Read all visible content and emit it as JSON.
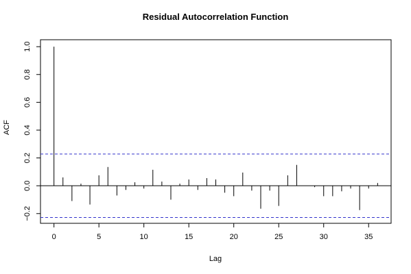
{
  "chart_data": {
    "type": "bar",
    "title": "Residual Autocorrelation Function",
    "xlabel": "Lag",
    "ylabel": "ACF",
    "xlim": [
      -1.5,
      37.5
    ],
    "ylim": [
      -0.27,
      1.05
    ],
    "x_ticks": [
      0,
      5,
      10,
      15,
      20,
      25,
      30,
      35
    ],
    "y_ticks": [
      -0.2,
      0.0,
      0.2,
      0.4,
      0.6,
      0.8,
      1.0
    ],
    "x_tick_labels": [
      "0",
      "5",
      "10",
      "15",
      "20",
      "25",
      "30",
      "35"
    ],
    "y_tick_labels": [
      "−0.2",
      "0.0",
      "0.2",
      "0.4",
      "0.6",
      "0.8",
      "1.0"
    ],
    "lags": [
      0,
      1,
      2,
      3,
      4,
      5,
      6,
      7,
      8,
      9,
      10,
      11,
      12,
      13,
      14,
      15,
      16,
      17,
      18,
      19,
      20,
      21,
      22,
      23,
      24,
      25,
      26,
      27,
      28,
      29,
      30,
      31,
      32,
      33,
      34,
      35,
      36
    ],
    "values": [
      1.0,
      0.06,
      -0.11,
      0.015,
      -0.135,
      0.075,
      0.135,
      -0.07,
      -0.03,
      0.025,
      -0.02,
      0.115,
      0.03,
      -0.1,
      0.015,
      0.045,
      -0.03,
      0.055,
      0.045,
      -0.05,
      -0.075,
      0.095,
      -0.035,
      -0.165,
      -0.035,
      -0.145,
      0.075,
      0.15,
      0.0,
      -0.01,
      -0.075,
      -0.075,
      -0.04,
      -0.02,
      -0.175,
      -0.02,
      0.02
    ],
    "confidence_bounds": [
      0.228,
      -0.228
    ],
    "zero_line": 0,
    "grid": false,
    "colors": {
      "bars": "#000000",
      "bounds": "#3333cc",
      "axes": "#000000"
    }
  }
}
